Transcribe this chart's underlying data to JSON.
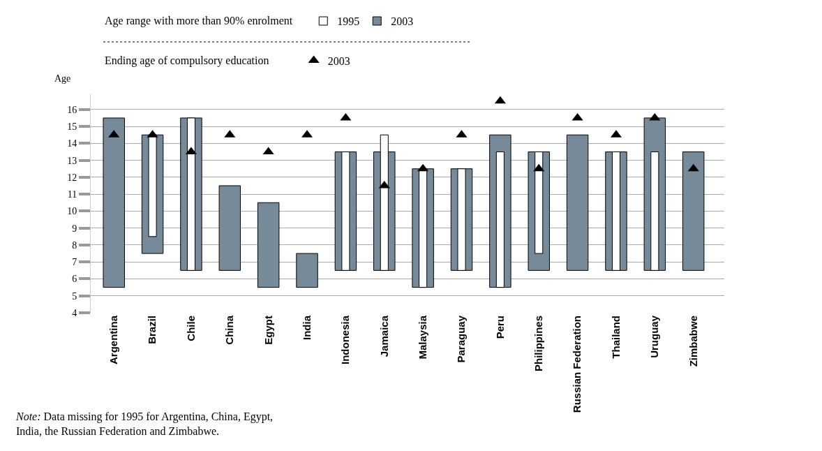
{
  "chart_data": {
    "type": "bar",
    "categories": [
      "Argentina",
      "Brazil",
      "Chile",
      "China",
      "Egypt",
      "India",
      "Indonesia",
      "Jamaica",
      "Malaysia",
      "Paraguay",
      "Peru",
      "Philippines",
      "Russian Federation",
      "Thailand",
      "Uruguay",
      "Zimbabwe"
    ],
    "ylabel": "Age",
    "series": [
      {
        "name": "2003",
        "color": "#778a99",
        "base": [
          5.5,
          7.5,
          6.5,
          6.5,
          5.5,
          5.5,
          6.5,
          6.5,
          5.5,
          6.5,
          5.5,
          6.5,
          6.5,
          6.5,
          6.5,
          6.5
        ],
        "values": [
          10,
          7,
          9,
          5,
          5,
          2,
          7,
          7,
          7,
          6,
          9,
          7,
          8,
          7,
          9,
          7
        ]
      },
      {
        "name": "1995",
        "color": "#ffffff",
        "base": [
          null,
          8.5,
          6.5,
          null,
          null,
          null,
          6.5,
          6.5,
          5.5,
          6.5,
          5.5,
          7.5,
          null,
          6.5,
          6.5,
          null
        ],
        "values": [
          null,
          6,
          9,
          null,
          null,
          null,
          7,
          8,
          7,
          6,
          8,
          6,
          null,
          7,
          7,
          null
        ]
      },
      {
        "name": "2003",
        "type": "scatter",
        "color": "#000000",
        "marker": "triangle",
        "values": [
          14.5,
          14.5,
          13.5,
          14.5,
          13.5,
          14.5,
          15.5,
          11.5,
          12.5,
          14.5,
          16.5,
          12.5,
          15.5,
          14.5,
          15.5,
          12.5
        ]
      }
    ],
    "ylim": [
      4,
      16.9
    ],
    "yticks": [
      4,
      5,
      6,
      7,
      8,
      9,
      10,
      11,
      12,
      13,
      14,
      15,
      16
    ],
    "grid": "y",
    "legend": "top left",
    "annotations": [
      "Age range with more than 90% enrolment",
      "Ending age of compulsory education",
      "Note: Data missing for 1995 for Argentina, China, Egypt, India, the Russian Federation and Zimbabwe."
    ]
  }
}
